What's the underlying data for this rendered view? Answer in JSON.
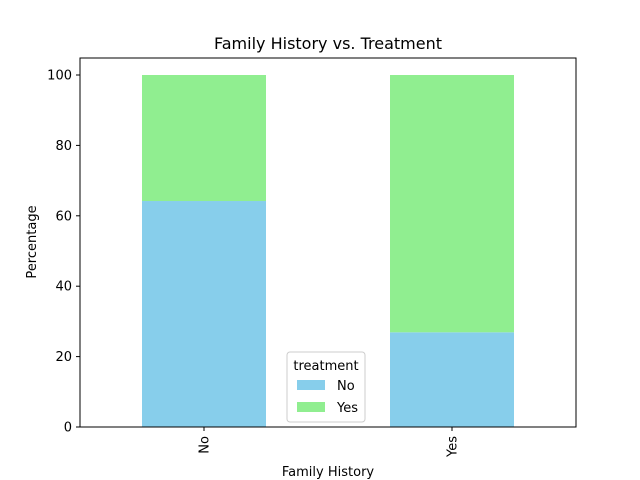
{
  "chart_data": {
    "type": "bar",
    "stacked": true,
    "title": "Family History vs. Treatment",
    "xlabel": "Family History",
    "ylabel": "Percentage",
    "categories": [
      "No",
      "Yes"
    ],
    "ylim": [
      0,
      100
    ],
    "yticks": [
      "0",
      "20",
      "40",
      "60",
      "80",
      "100"
    ],
    "grid": false,
    "series": [
      {
        "name": "No",
        "values": [
          64.2,
          26.9
        ],
        "color": "#87ceeb"
      },
      {
        "name": "Yes",
        "values": [
          35.8,
          73.1
        ],
        "color": "#90ee90"
      }
    ],
    "legend": {
      "title": "treatment",
      "position": "lower-center"
    }
  }
}
